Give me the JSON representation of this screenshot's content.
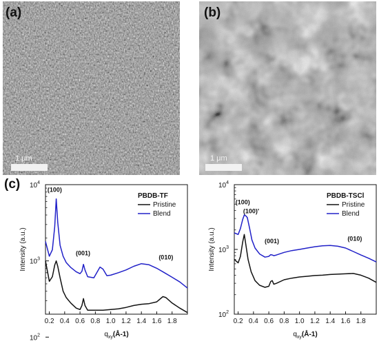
{
  "figure": {
    "panels": [
      {
        "label": "(a)",
        "scale_bar": "1 μm"
      },
      {
        "label": "(b)",
        "scale_bar": "1 μm"
      },
      {
        "label": "(c)"
      }
    ]
  },
  "chart_data": [
    {
      "type": "line",
      "title": "PBDB-TF",
      "xlabel": "q",
      "xlabel_sub": "xy",
      "xlabel_unit": "(Å-1)",
      "ylabel": "Intensity (a.u.)",
      "xlim": [
        0.15,
        2.0
      ],
      "ylim": [
        200,
        10000
      ],
      "yscale": "log",
      "x_ticks": [
        "0.2",
        "0.4",
        "0.6",
        "0.8",
        "1.0",
        "1.2",
        "1.4",
        "1.6",
        "1.8"
      ],
      "y_ticks": [
        {
          "base": "10",
          "exp": "2"
        },
        {
          "base": "10",
          "exp": "3"
        },
        {
          "base": "10",
          "exp": "4"
        }
      ],
      "legend_position": "top-right",
      "series": [
        {
          "name": "Pristine",
          "color": "#111111",
          "x": [
            0.15,
            0.2,
            0.24,
            0.27,
            0.29,
            0.31,
            0.34,
            0.38,
            0.42,
            0.48,
            0.55,
            0.6,
            0.625,
            0.645,
            0.665,
            0.7,
            0.8,
            0.9,
            1.0,
            1.1,
            1.2,
            1.3,
            1.4,
            1.5,
            1.6,
            1.68,
            1.72,
            1.8,
            1.9,
            2.0
          ],
          "y": [
            1000,
            540,
            620,
            880,
            1000,
            850,
            600,
            400,
            330,
            280,
            240,
            230,
            260,
            320,
            260,
            225,
            225,
            225,
            230,
            235,
            245,
            260,
            270,
            275,
            290,
            340,
            330,
            280,
            240,
            210
          ]
        },
        {
          "name": "Blend",
          "color": "#2020c8",
          "x": [
            0.15,
            0.2,
            0.24,
            0.27,
            0.29,
            0.31,
            0.34,
            0.38,
            0.42,
            0.48,
            0.55,
            0.6,
            0.625,
            0.645,
            0.665,
            0.7,
            0.78,
            0.86,
            0.9,
            0.95,
            1.0,
            1.1,
            1.2,
            1.3,
            1.4,
            1.5,
            1.6,
            1.7,
            1.8,
            1.9,
            2.0
          ],
          "y": [
            1800,
            1150,
            1400,
            2800,
            6500,
            3200,
            1600,
            1150,
            950,
            820,
            720,
            680,
            730,
            900,
            760,
            620,
            600,
            830,
            780,
            640,
            650,
            700,
            760,
            850,
            920,
            890,
            800,
            700,
            610,
            530,
            440
          ]
        }
      ],
      "annotations": [
        {
          "text": "(100)",
          "x": 0.27,
          "y": 8000
        },
        {
          "text": "(001)",
          "x": 0.64,
          "y": 1180
        },
        {
          "text": "(010)",
          "x": 1.72,
          "y": 1050
        }
      ]
    },
    {
      "type": "line",
      "title": "PBDB-TSCl",
      "xlabel": "q",
      "xlabel_sub": "xy",
      "xlabel_unit": "(Å-1)",
      "ylabel": "Intensity (a.u.)",
      "xlim": [
        0.15,
        2.0
      ],
      "ylim": [
        100,
        10000
      ],
      "yscale": "log",
      "x_ticks": [
        "0.2",
        "0.4",
        "0.6",
        "0.8",
        "1.0",
        "1.2",
        "1.4",
        "1.6",
        "1.8"
      ],
      "y_ticks": [
        {
          "base": "10",
          "exp": "2"
        },
        {
          "base": "10",
          "exp": "3"
        },
        {
          "base": "10",
          "exp": "4"
        }
      ],
      "legend_position": "top-right",
      "series": [
        {
          "name": "Pristine",
          "color": "#111111",
          "x": [
            0.15,
            0.2,
            0.23,
            0.26,
            0.28,
            0.3,
            0.33,
            0.37,
            0.42,
            0.48,
            0.55,
            0.6,
            0.625,
            0.645,
            0.665,
            0.7,
            0.8,
            0.9,
            1.0,
            1.1,
            1.2,
            1.3,
            1.4,
            1.5,
            1.6,
            1.7,
            1.8,
            1.9,
            2.0
          ],
          "y": [
            700,
            620,
            780,
            1300,
            1700,
            1200,
            700,
            450,
            330,
            280,
            260,
            270,
            320,
            330,
            290,
            300,
            340,
            360,
            375,
            385,
            395,
            400,
            410,
            415,
            420,
            425,
            400,
            360,
            310
          ]
        },
        {
          "name": "Blend",
          "color": "#2020c8",
          "x": [
            0.15,
            0.2,
            0.23,
            0.26,
            0.28,
            0.3,
            0.32,
            0.35,
            0.38,
            0.42,
            0.48,
            0.55,
            0.6,
            0.625,
            0.645,
            0.665,
            0.7,
            0.8,
            0.9,
            1.0,
            1.1,
            1.2,
            1.3,
            1.4,
            1.5,
            1.6,
            1.7,
            1.8,
            1.9,
            2.0
          ],
          "y": [
            1800,
            1700,
            2100,
            2900,
            3400,
            3300,
            3100,
            2100,
            1400,
            1050,
            850,
            760,
            780,
            830,
            820,
            800,
            820,
            900,
            960,
            1000,
            1050,
            1100,
            1140,
            1150,
            1120,
            1050,
            930,
            820,
            730,
            640
          ]
        }
      ],
      "annotations": [
        {
          "text": "(100)",
          "x": 0.26,
          "y": 5000
        },
        {
          "text": "(100)'",
          "x": 0.37,
          "y": 3600
        },
        {
          "text": "(001)",
          "x": 0.64,
          "y": 1250
        },
        {
          "text": "(010)",
          "x": 1.72,
          "y": 1350
        }
      ]
    }
  ]
}
